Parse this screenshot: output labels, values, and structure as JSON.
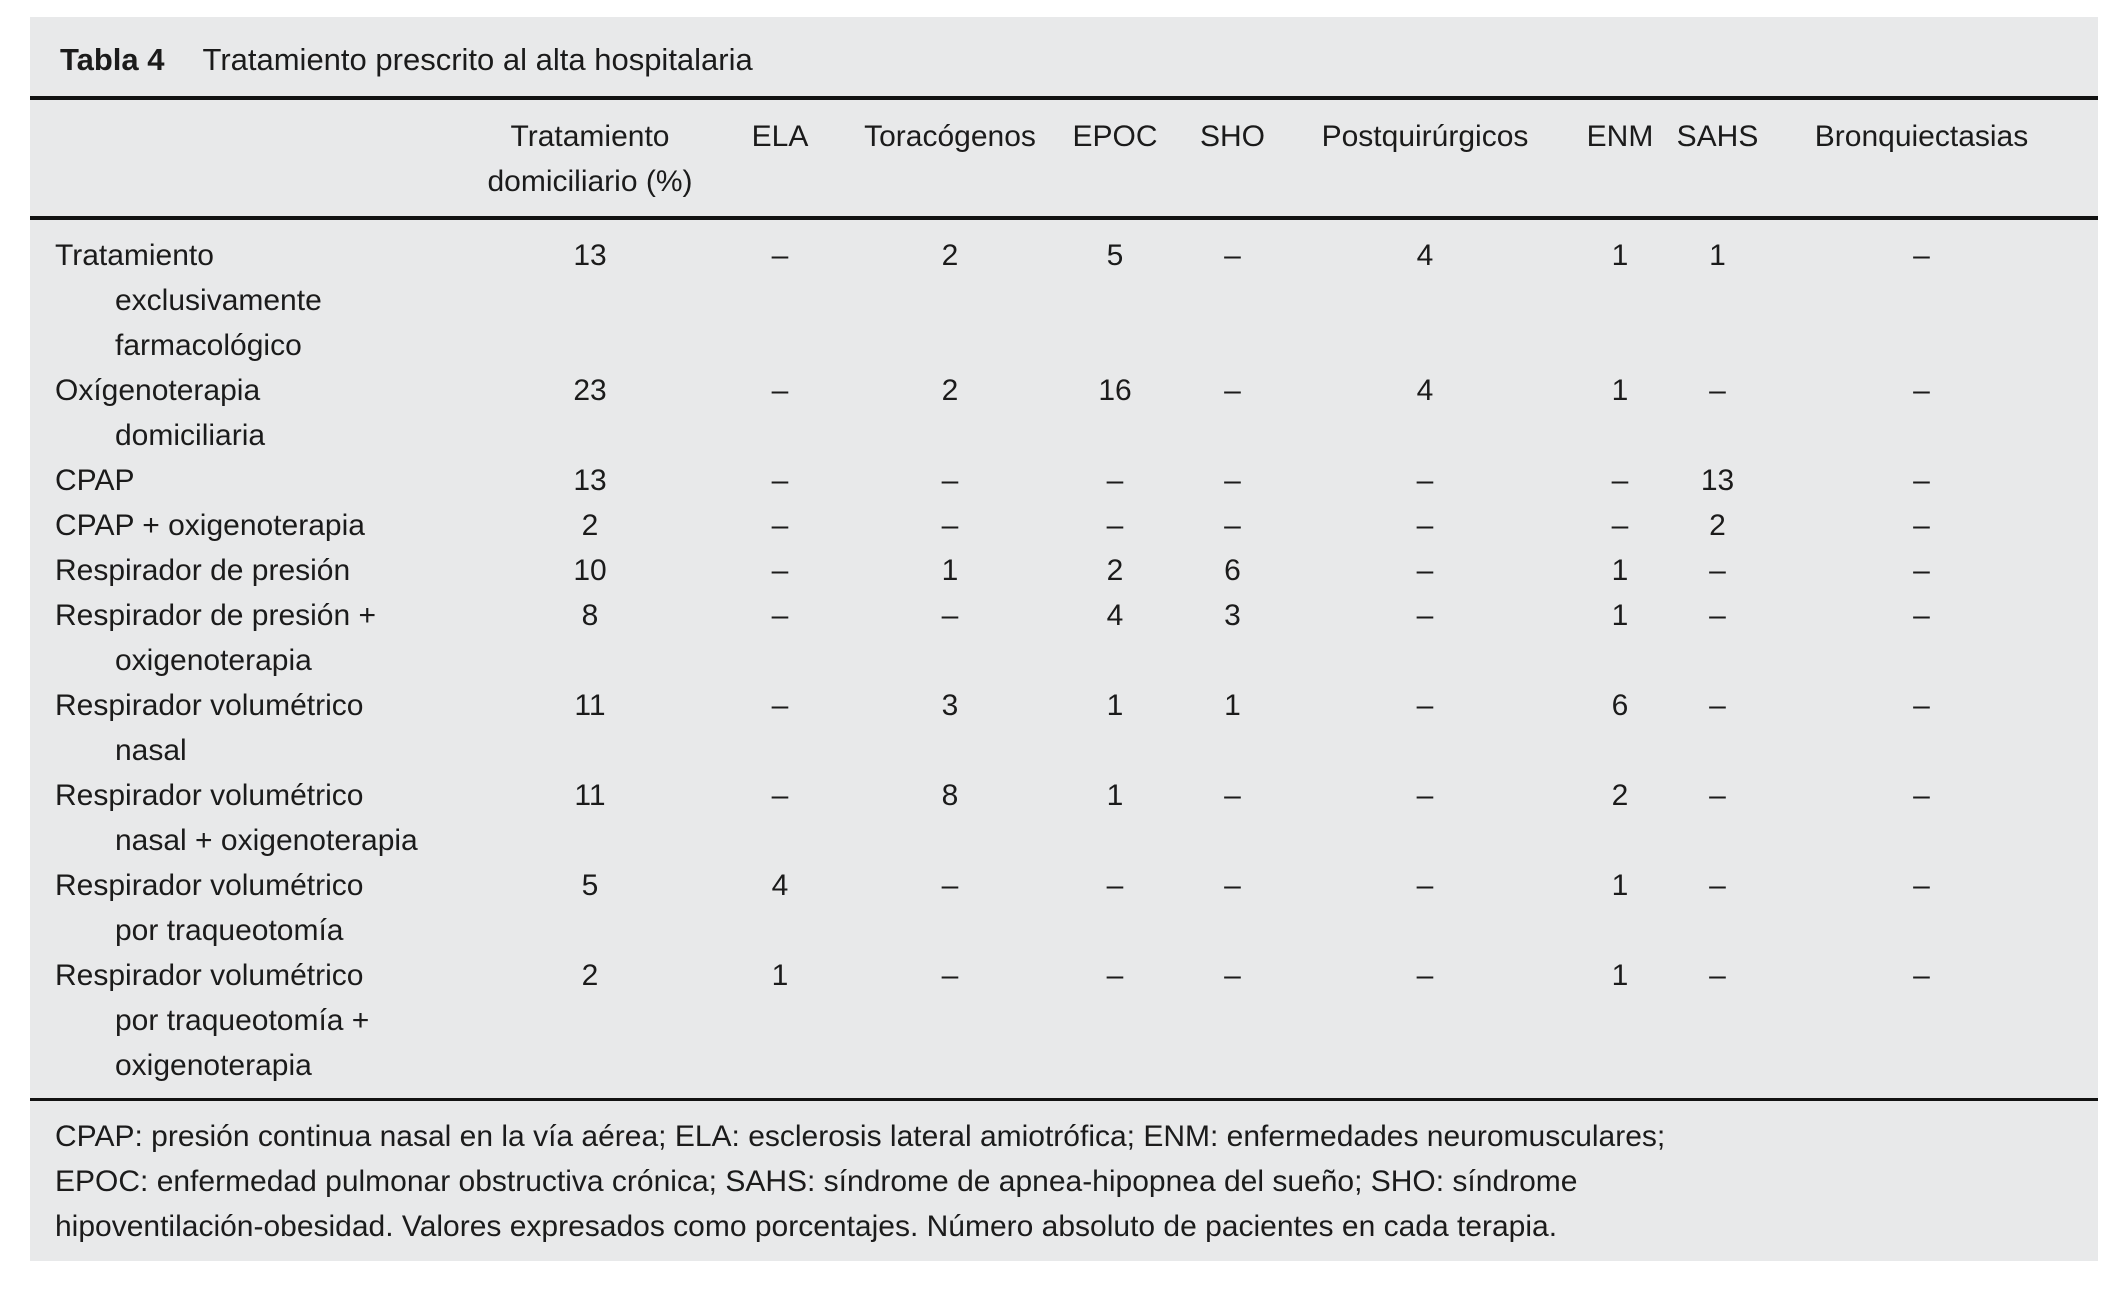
{
  "title": {
    "label": "Tabla 4",
    "text": "Tratamiento prescrito al alta hospitalaria"
  },
  "table": {
    "header": [
      {
        "lines": [
          ""
        ]
      },
      {
        "lines": [
          "Tratamiento",
          "domiciliario (%)"
        ]
      },
      {
        "lines": [
          "ELA"
        ]
      },
      {
        "lines": [
          "Toracógenos"
        ]
      },
      {
        "lines": [
          "EPOC"
        ]
      },
      {
        "lines": [
          "SHO"
        ]
      },
      {
        "lines": [
          "Postquirúrgicos"
        ]
      },
      {
        "lines": [
          "ENM"
        ]
      },
      {
        "lines": [
          "SAHS"
        ]
      },
      {
        "lines": [
          "Bronquiectasias"
        ]
      }
    ],
    "rows": [
      {
        "label_lines": [
          "Tratamiento",
          "exclusivamente",
          "farmacológico"
        ],
        "values": [
          "13",
          "–",
          "2",
          "5",
          "–",
          "4",
          "1",
          "1",
          "–"
        ]
      },
      {
        "label_lines": [
          "Oxígenoterapia",
          "domiciliaria"
        ],
        "values": [
          "23",
          "–",
          "2",
          "16",
          "–",
          "4",
          "1",
          "–",
          "–"
        ]
      },
      {
        "label_lines": [
          "CPAP"
        ],
        "values": [
          "13",
          "–",
          "–",
          "–",
          "–",
          "–",
          "–",
          "13",
          "–"
        ]
      },
      {
        "label_lines": [
          "CPAP + oxigenoterapia"
        ],
        "values": [
          "2",
          "–",
          "–",
          "–",
          "–",
          "–",
          "–",
          "2",
          "–"
        ]
      },
      {
        "label_lines": [
          "Respirador de presión"
        ],
        "values": [
          "10",
          "–",
          "1",
          "2",
          "6",
          "–",
          "1",
          "–",
          "–"
        ]
      },
      {
        "label_lines": [
          "Respirador de presión +",
          "oxigenoterapia"
        ],
        "values": [
          "8",
          "–",
          "–",
          "4",
          "3",
          "–",
          "1",
          "–",
          "–"
        ]
      },
      {
        "label_lines": [
          "Respirador volumétrico",
          "nasal"
        ],
        "values": [
          "11",
          "–",
          "3",
          "1",
          "1",
          "–",
          "6",
          "–",
          "–"
        ]
      },
      {
        "label_lines": [
          "Respirador volumétrico",
          "nasal + oxigenoterapia"
        ],
        "values": [
          "11",
          "–",
          "8",
          "1",
          "–",
          "–",
          "2",
          "–",
          "–"
        ]
      },
      {
        "label_lines": [
          "Respirador volumétrico",
          "por traqueotomía"
        ],
        "values": [
          "5",
          "4",
          "–",
          "–",
          "–",
          "–",
          "1",
          "–",
          "–"
        ]
      },
      {
        "label_lines": [
          "Respirador volumétrico",
          "por traqueotomía +",
          "oxigenoterapia"
        ],
        "values": [
          "2",
          "1",
          "–",
          "–",
          "–",
          "–",
          "1",
          "–",
          "–"
        ]
      }
    ]
  },
  "footnote_lines": [
    "CPAP: presión continua nasal en la vía aérea; ELA: esclerosis lateral amiotrófica; ENM: enfermedades neuromusculares;",
    "EPOC: enfermedad pulmonar obstructiva crónica; SAHS: síndrome de apnea-hipopnea del sueño; SHO: síndrome",
    "hipoventilación-obesidad. Valores expresados como porcentajes. Número absoluto de pacientes en cada terapia."
  ],
  "colors": {
    "panel_background": "#e8e9ea",
    "text": "#1b1b1b",
    "rule": "#121212"
  }
}
